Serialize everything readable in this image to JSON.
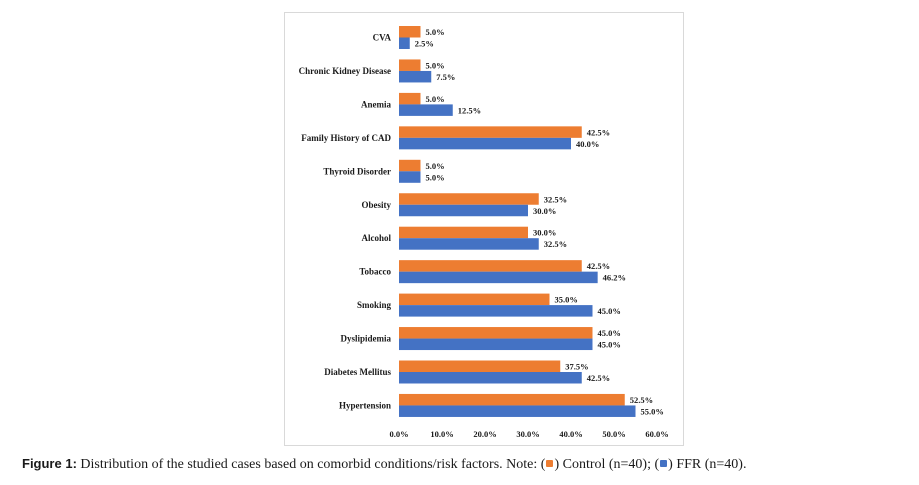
{
  "chart_data": {
    "type": "bar",
    "orientation": "horizontal",
    "categories": [
      "CVA",
      "Chronic Kidney Disease",
      "Anemia",
      "Family History of CAD",
      "Thyroid Disorder",
      "Obesity",
      "Alcohol",
      "Tobacco",
      "Smoking",
      "Dyslipidemia",
      "Diabetes Mellitus",
      "Hypertension"
    ],
    "series": [
      {
        "name": "Control (n=40)",
        "color": "#ED7D31",
        "values": [
          5.0,
          5.0,
          5.0,
          42.5,
          5.0,
          32.5,
          30.0,
          42.5,
          35.0,
          45.0,
          37.5,
          52.5
        ],
        "labels": [
          "5.0%",
          "5.0%",
          "5.0%",
          "42.5%",
          "5.0%",
          "32.5%",
          "30.0%",
          "42.5%",
          "35.0%",
          "45.0%",
          "37.5%",
          "52.5%"
        ]
      },
      {
        "name": "FFR (n=40)",
        "color": "#4472C4",
        "values": [
          2.5,
          7.5,
          12.5,
          40.0,
          5.0,
          30.0,
          32.5,
          46.2,
          45.0,
          45.0,
          42.5,
          55.0
        ],
        "labels": [
          "2.5%",
          "7.5%",
          "12.5%",
          "40.0%",
          "5.0%",
          "30.0%",
          "32.5%",
          "46.2%",
          "45.0%",
          "45.0%",
          "42.5%",
          "55.0%"
        ]
      }
    ],
    "xlim": [
      0,
      60
    ],
    "xticks": [
      "0.0%",
      "10.0%",
      "20.0%",
      "30.0%",
      "40.0%",
      "50.0%",
      "60.0%"
    ],
    "grid": false,
    "legend": "none"
  },
  "caption": {
    "figure_label": "Figure 1:",
    "text": " Distribution of the studied cases based on comorbid conditions/risk factors. Note: (",
    "control_text": ") Control (n=40); (",
    "ffr_text": ") FFR (n=40)."
  }
}
